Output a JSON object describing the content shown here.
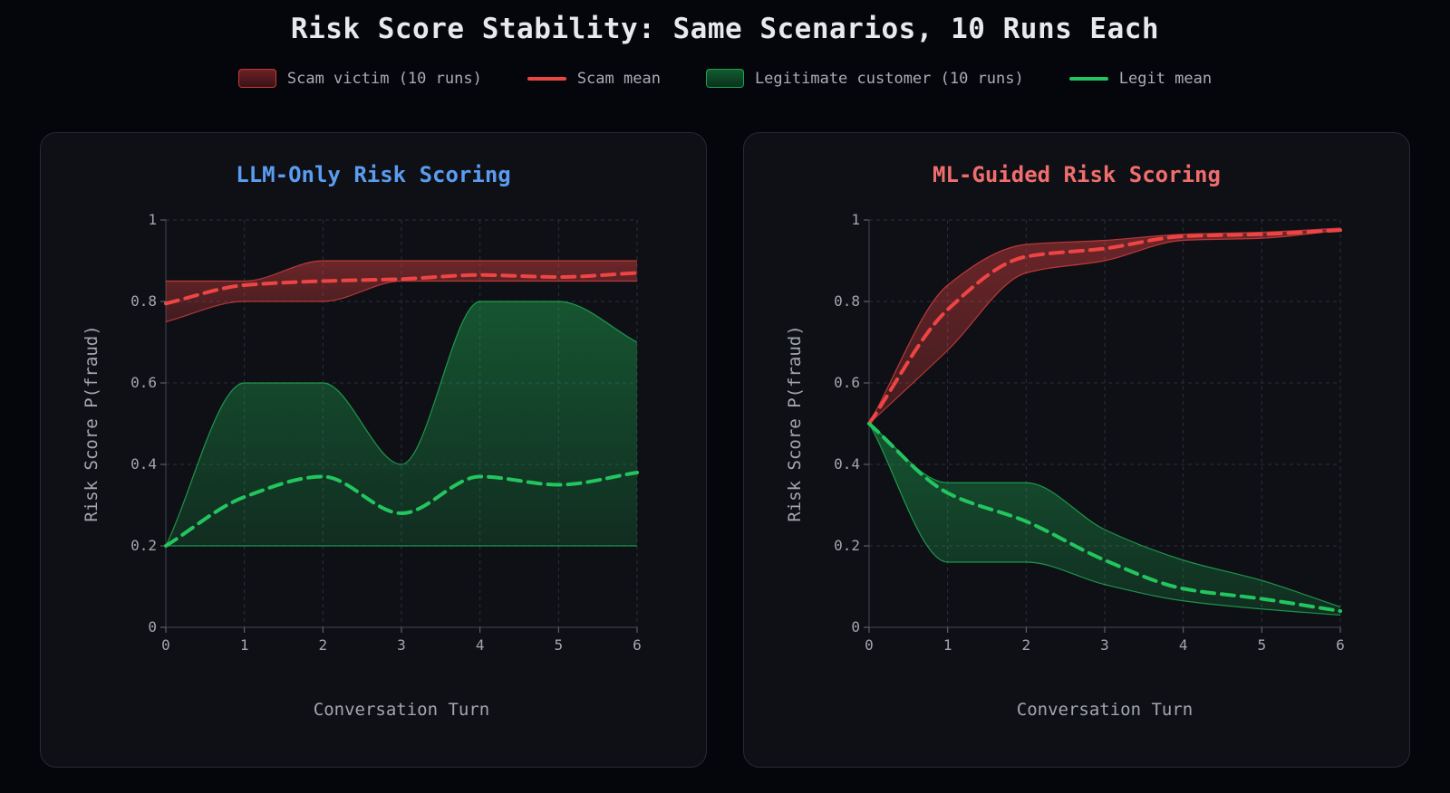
{
  "title": "Risk Score Stability: Same Scenarios, 10 Runs Each",
  "legend": [
    {
      "label": "Scam victim (10 runs)",
      "kind": "band",
      "color": "#ef4444"
    },
    {
      "label": "Scam mean",
      "kind": "line",
      "color": "#ef4444"
    },
    {
      "label": "Legitimate customer (10 runs)",
      "kind": "band",
      "color": "#22c55e"
    },
    {
      "label": "Legit mean",
      "kind": "line",
      "color": "#22c55e"
    }
  ],
  "colors": {
    "llm_title": "#5b9cf0",
    "ml_title": "#f06d6d",
    "scam": "#ef4444",
    "legit": "#22c55e"
  },
  "chart_data": [
    {
      "type": "area",
      "title": "LLM-Only Risk Scoring",
      "xlabel": "Conversation Turn",
      "ylabel": "Risk Score P(fraud)",
      "x": [
        0,
        1,
        2,
        3,
        4,
        5,
        6
      ],
      "xlim": [
        0,
        6
      ],
      "ylim": [
        0,
        1
      ],
      "yticks": [
        0,
        0.2,
        0.4,
        0.6,
        0.8,
        1
      ],
      "ytick_labels": [
        "0",
        "0.2",
        "0.4",
        "0.6",
        "0.8",
        "1"
      ],
      "xtick_labels": [
        "0",
        "1",
        "2",
        "3",
        "4",
        "5",
        "6"
      ],
      "grid": true,
      "series": [
        {
          "name": "Scam victim (10 runs)",
          "kind": "band",
          "color": "#ef4444",
          "lower": [
            0.75,
            0.8,
            0.8,
            0.85,
            0.85,
            0.85,
            0.85
          ],
          "upper": [
            0.85,
            0.85,
            0.9,
            0.9,
            0.9,
            0.9,
            0.9
          ]
        },
        {
          "name": "Scam mean",
          "kind": "line",
          "color": "#ef4444",
          "values": [
            0.795,
            0.84,
            0.85,
            0.855,
            0.865,
            0.86,
            0.87
          ]
        },
        {
          "name": "Legitimate customer (10 runs)",
          "kind": "band",
          "color": "#22c55e",
          "lower": [
            0.2,
            0.2,
            0.2,
            0.2,
            0.2,
            0.2,
            0.2
          ],
          "upper": [
            0.2,
            0.6,
            0.6,
            0.4,
            0.8,
            0.8,
            0.7
          ]
        },
        {
          "name": "Legit mean",
          "kind": "line",
          "color": "#22c55e",
          "values": [
            0.2,
            0.32,
            0.37,
            0.28,
            0.37,
            0.35,
            0.38
          ]
        }
      ]
    },
    {
      "type": "area",
      "title": "ML-Guided Risk Scoring",
      "xlabel": "Conversation Turn",
      "ylabel": "Risk Score P(fraud)",
      "x": [
        0,
        1,
        2,
        3,
        4,
        5,
        6
      ],
      "xlim": [
        0,
        6
      ],
      "ylim": [
        0,
        1
      ],
      "yticks": [
        0,
        0.2,
        0.4,
        0.6,
        0.8,
        1
      ],
      "ytick_labels": [
        "0",
        "0.2",
        "0.4",
        "0.6",
        "0.8",
        "1"
      ],
      "xtick_labels": [
        "0",
        "1",
        "2",
        "3",
        "4",
        "5",
        "6"
      ],
      "grid": true,
      "series": [
        {
          "name": "Scam victim (10 runs)",
          "kind": "band",
          "color": "#ef4444",
          "lower": [
            0.5,
            0.68,
            0.87,
            0.9,
            0.95,
            0.955,
            0.975
          ],
          "upper": [
            0.5,
            0.84,
            0.94,
            0.95,
            0.965,
            0.97,
            0.98
          ]
        },
        {
          "name": "Scam mean",
          "kind": "line",
          "color": "#ef4444",
          "values": [
            0.5,
            0.78,
            0.91,
            0.93,
            0.96,
            0.965,
            0.975
          ]
        },
        {
          "name": "Legitimate customer (10 runs)",
          "kind": "band",
          "color": "#22c55e",
          "lower": [
            0.5,
            0.16,
            0.16,
            0.105,
            0.065,
            0.045,
            0.03
          ],
          "upper": [
            0.5,
            0.355,
            0.355,
            0.24,
            0.165,
            0.115,
            0.05
          ]
        },
        {
          "name": "Legit mean",
          "kind": "line",
          "color": "#22c55e",
          "values": [
            0.5,
            0.33,
            0.26,
            0.165,
            0.095,
            0.07,
            0.04
          ]
        }
      ]
    }
  ]
}
